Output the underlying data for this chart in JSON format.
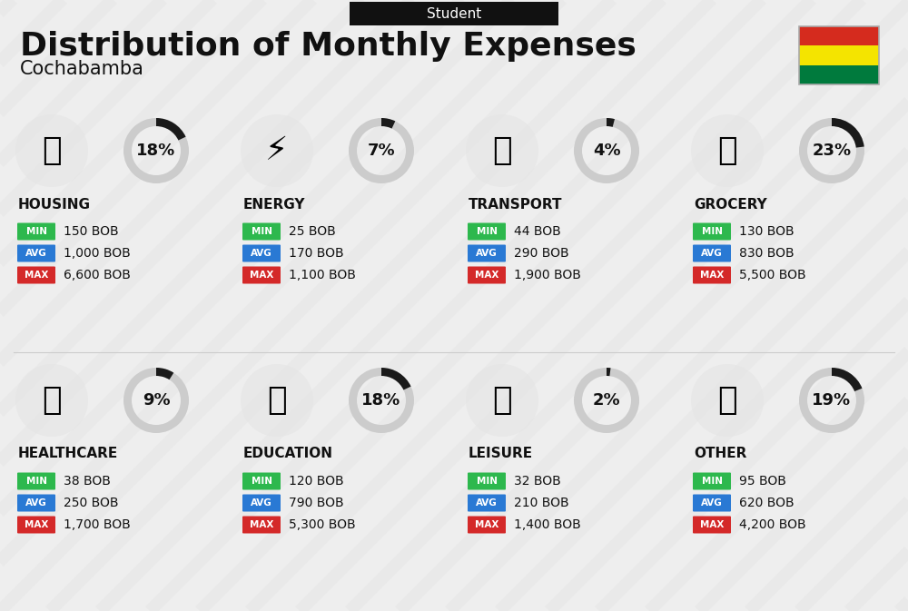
{
  "title": "Distribution of Monthly Expenses",
  "subtitle": "Cochabamba",
  "header_label": "Student",
  "bg_color": "#eeeeee",
  "categories": [
    {
      "name": "HOUSING",
      "pct": 18,
      "min": "150 BOB",
      "avg": "1,000 BOB",
      "max": "6,600 BOB",
      "row": 0,
      "col": 0
    },
    {
      "name": "ENERGY",
      "pct": 7,
      "min": "25 BOB",
      "avg": "170 BOB",
      "max": "1,100 BOB",
      "row": 0,
      "col": 1
    },
    {
      "name": "TRANSPORT",
      "pct": 4,
      "min": "44 BOB",
      "avg": "290 BOB",
      "max": "1,900 BOB",
      "row": 0,
      "col": 2
    },
    {
      "name": "GROCERY",
      "pct": 23,
      "min": "130 BOB",
      "avg": "830 BOB",
      "max": "5,500 BOB",
      "row": 0,
      "col": 3
    },
    {
      "name": "HEALTHCARE",
      "pct": 9,
      "min": "38 BOB",
      "avg": "250 BOB",
      "max": "1,700 BOB",
      "row": 1,
      "col": 0
    },
    {
      "name": "EDUCATION",
      "pct": 18,
      "min": "120 BOB",
      "avg": "790 BOB",
      "max": "5,300 BOB",
      "row": 1,
      "col": 1
    },
    {
      "name": "LEISURE",
      "pct": 2,
      "min": "32 BOB",
      "avg": "210 BOB",
      "max": "1,400 BOB",
      "row": 1,
      "col": 2
    },
    {
      "name": "OTHER",
      "pct": 19,
      "min": "95 BOB",
      "avg": "620 BOB",
      "max": "4,200 BOB",
      "row": 1,
      "col": 3
    }
  ],
  "min_color": "#2db84d",
  "avg_color": "#2979d4",
  "max_color": "#d42929",
  "donut_bg": "#cccccc",
  "donut_fg": "#1a1a1a",
  "flag_colors": [
    "#D52B1E",
    "#F4E400",
    "#007A3D"
  ],
  "stripe_color": "#e0e0e0",
  "divider_color": "#cccccc"
}
